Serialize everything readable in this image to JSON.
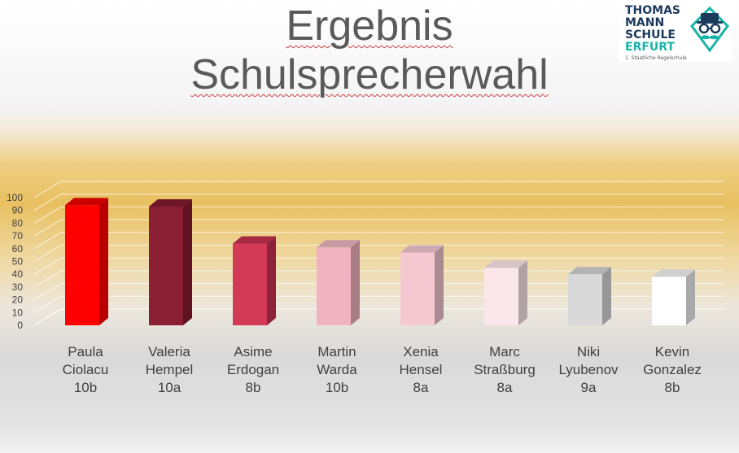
{
  "title_lines": [
    "Ergebnis",
    "Schulsprecherwahl"
  ],
  "logo": {
    "line1": "THOMAS",
    "line2": "MANN",
    "line3": "SCHULE",
    "line4": "ERFURT",
    "subtitle": "1. Staatliche Regelschule",
    "icon": "moustache-hat-glasses-icon"
  },
  "colors": {
    "title": "#5a5a5a",
    "logo_dark": "#1b3a5c",
    "logo_teal": "#19b3a8"
  },
  "chart_data": {
    "type": "bar",
    "title": "",
    "xlabel": "",
    "ylabel": "",
    "ylim": [
      0,
      100
    ],
    "yticks": [
      0,
      10,
      20,
      30,
      40,
      50,
      60,
      70,
      80,
      90,
      100
    ],
    "grid": true,
    "legend": "none",
    "style": "3d-column",
    "categories": [
      [
        "Paula",
        "Ciolacu",
        "10b"
      ],
      [
        "Valeria",
        "Hempel",
        "10a"
      ],
      [
        "Asime",
        "Erdogan",
        "8b"
      ],
      [
        "Martin",
        "Warda",
        "10b"
      ],
      [
        "Xenia",
        "Hensel",
        "8a"
      ],
      [
        "Marc",
        "Straßburg",
        "8a"
      ],
      [
        "Niki",
        "Lyubenov",
        "9a"
      ],
      [
        "Kevin",
        "Gonzalez",
        "8b"
      ]
    ],
    "values": [
      94,
      93,
      64,
      61,
      57,
      45,
      40,
      38
    ],
    "bar_colors": [
      "#ff0000",
      "#8b1f33",
      "#d33a55",
      "#f1b3c1",
      "#f5c8d1",
      "#fbe6ea",
      "#d9d9d9",
      "#ffffff"
    ],
    "side_colors": [
      "#b80000",
      "#5e1222",
      "#8e2238",
      "#a87d86",
      "#ab8b92",
      "#b0a2a5",
      "#979797",
      "#a9a9a9"
    ],
    "top_colors": [
      "#cc0000",
      "#6f1728",
      "#a52a42",
      "#c89aa4",
      "#cfa9b1",
      "#d7c4c8",
      "#b3b3b3",
      "#cfcfcf"
    ]
  }
}
